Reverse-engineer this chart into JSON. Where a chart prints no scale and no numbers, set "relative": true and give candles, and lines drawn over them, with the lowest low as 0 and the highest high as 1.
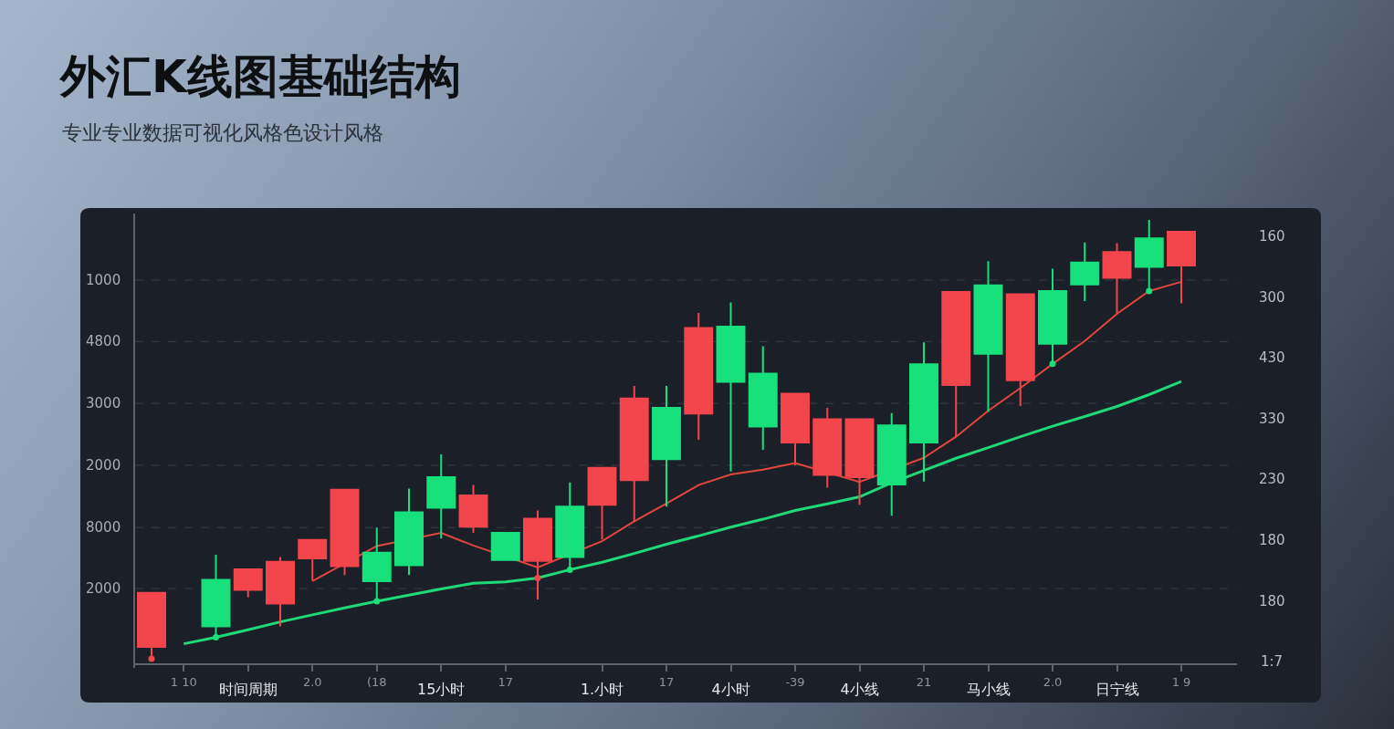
{
  "chart_data": {
    "type": "candlestick",
    "title": "外汇K线图基础结构",
    "subtitle": "专业专业数据可视化风格色设计风格",
    "relative": true,
    "categories": [
      null,
      "1 10",
      null,
      "时间周期",
      null,
      "2.0",
      null,
      "(18",
      null,
      "15小时",
      null,
      "17",
      null,
      null,
      "1.小时",
      null,
      "17",
      null,
      "4小时",
      null,
      "-39",
      null,
      "4小线",
      null,
      "21",
      null,
      "马小线",
      null,
      "2.0",
      null,
      "日宁线",
      null,
      "1 9"
    ],
    "ohlc": [
      [
        0.027,
        0.15,
        0,
        0.15
      ],
      null,
      [
        0.18,
        0.237,
        0.048,
        0.074
      ],
      [
        0.157,
        0.204,
        0.14,
        0.204
      ],
      [
        0.126,
        0.232,
        0.074,
        0.221
      ],
      [
        0.229,
        0.271,
        0.178,
        0.271
      ],
      [
        0.211,
        0.385,
        0.191,
        0.385
      ],
      [
        0.242,
        0.299,
        0.132,
        0.177
      ],
      [
        0.334,
        0.388,
        0.191,
        0.213
      ],
      [
        0.414,
        0.466,
        0.274,
        0.344
      ],
      [
        0.301,
        0.396,
        0.287,
        0.372
      ],
      [
        0.287,
        0.287,
        0.225,
        0.225
      ],
      [
        0.223,
        0.338,
        0.135,
        0.319
      ],
      [
        0.347,
        0.402,
        0.204,
        0.232
      ],
      [
        0.351,
        0.435,
        0.272,
        0.435
      ],
      [
        0.407,
        0.622,
        0.312,
        0.593
      ],
      [
        0.572,
        0.622,
        0.347,
        0.455
      ],
      [
        0.559,
        0.788,
        0.499,
        0.754
      ],
      [
        0.757,
        0.812,
        0.427,
        0.631
      ],
      [
        0.65,
        0.712,
        0.476,
        0.529
      ],
      [
        0.493,
        0.604,
        0.441,
        0.604
      ],
      [
        0.419,
        0.572,
        0.39,
        0.546
      ],
      [
        0.414,
        0.546,
        0.351,
        0.546
      ],
      [
        0.532,
        0.56,
        0.326,
        0.397
      ],
      [
        0.671,
        0.721,
        0.404,
        0.493
      ],
      [
        0.624,
        0.836,
        0.506,
        0.836
      ],
      [
        0.851,
        0.906,
        0.563,
        0.695
      ],
      [
        0.635,
        0.831,
        0.576,
        0.831
      ],
      [
        0.838,
        0.889,
        0.673,
        0.718
      ],
      [
        0.903,
        0.949,
        0.815,
        0.853
      ],
      [
        0.868,
        0.947,
        0.787,
        0.927
      ],
      [
        0.958,
        1,
        0.837,
        0.893
      ],
      [
        0.896,
        0.973,
        0.81,
        0.973
      ]
    ],
    "colors": [
      "#f2454c",
      null,
      "#18e07c",
      "#f2454c",
      "#f2454c",
      "#f2454c",
      "#f2454c",
      "#18e07c",
      "#18e07c",
      "#18e07c",
      "#f2454c",
      "#18e07c",
      "#f2454c",
      "#18e07c",
      "#f2454c",
      "#f2454c",
      "#18e07c",
      "#f2454c",
      "#18e07c",
      "#18e07c",
      "#f2454c",
      "#f2454c",
      "#f2454c",
      "#18e07c",
      "#18e07c",
      "#f2454c",
      "#18e07c",
      "#f2454c",
      "#18e07c",
      "#18e07c",
      "#f2454c",
      "#18e07c",
      "#f2454c"
    ],
    "series": [
      {
        "type": "line",
        "color": "#e2463f",
        "values": [
          null,
          null,
          null,
          null,
          null,
          0.177,
          null,
          0.257,
          null,
          0.287,
          0.258,
          null,
          0.208,
          null,
          0.268,
          0.313,
          0.354,
          0.396,
          0.42,
          0.431,
          0.446,
          null,
          0.403,
          null,
          0.458,
          0.506,
          0.565,
          0.617,
          0.672,
          0.724,
          0.786,
          0.838,
          0.859
        ]
      },
      {
        "type": "line",
        "color": "#1fd877",
        "values": [
          null,
          0.034,
          0.049,
          0.066,
          0.084,
          0.1,
          0.116,
          0.131,
          0.145,
          0.159,
          0.172,
          0.175,
          0.184,
          0.203,
          0.22,
          0.24,
          0.261,
          0.28,
          0.3,
          0.318,
          0.338,
          0.353,
          0.369,
          0.401,
          0.429,
          0.457,
          0.481,
          0.506,
          0.53,
          0.552,
          0.575,
          0.602,
          0.632
        ]
      },
      {
        "type": "scatter",
        "color": "#f2454c",
        "marker": "circle",
        "values": [
          0,
          null,
          null,
          null,
          null,
          null,
          null,
          null,
          null,
          null,
          null,
          null,
          0.184,
          null,
          null,
          null,
          null,
          null,
          null,
          null,
          null,
          null,
          null,
          null,
          null,
          null,
          null,
          null,
          null,
          null,
          null,
          null,
          null
        ]
      },
      {
        "type": "scatter",
        "color": "#18e07c",
        "marker": "circle",
        "values": [
          null,
          null,
          0.049,
          null,
          null,
          null,
          null,
          0.131,
          null,
          null,
          null,
          null,
          null,
          0.203,
          null,
          null,
          null,
          null,
          null,
          null,
          null,
          null,
          null,
          null,
          null,
          null,
          null,
          null,
          0.672,
          null,
          null,
          0.838,
          null
        ]
      }
    ],
    "ref_lines": [
      {
        "axis": "y",
        "value": 0.863,
        "line_style": "dashed",
        "color": "#3a3f48"
      },
      {
        "axis": "y",
        "value": 0.723,
        "line_style": "dashed",
        "color": "#3a3f48"
      },
      {
        "axis": "y",
        "value": 0.582,
        "line_style": "dashed",
        "color": "#3a3f48"
      },
      {
        "axis": "y",
        "value": 0.441,
        "line_style": "dashed",
        "color": "#3a3f48"
      },
      {
        "axis": "y",
        "value": 0.299,
        "line_style": "dashed",
        "color": "#3a3f48"
      },
      {
        "axis": "y",
        "value": 0.16,
        "line_style": "dashed",
        "color": "#3a3f48"
      }
    ],
    "annotations": [
      "1000",
      "4800",
      "3000",
      "2000",
      "8000",
      "2000",
      "160",
      "300",
      "430",
      "330",
      "230",
      "180",
      "180",
      "1:7"
    ]
  }
}
